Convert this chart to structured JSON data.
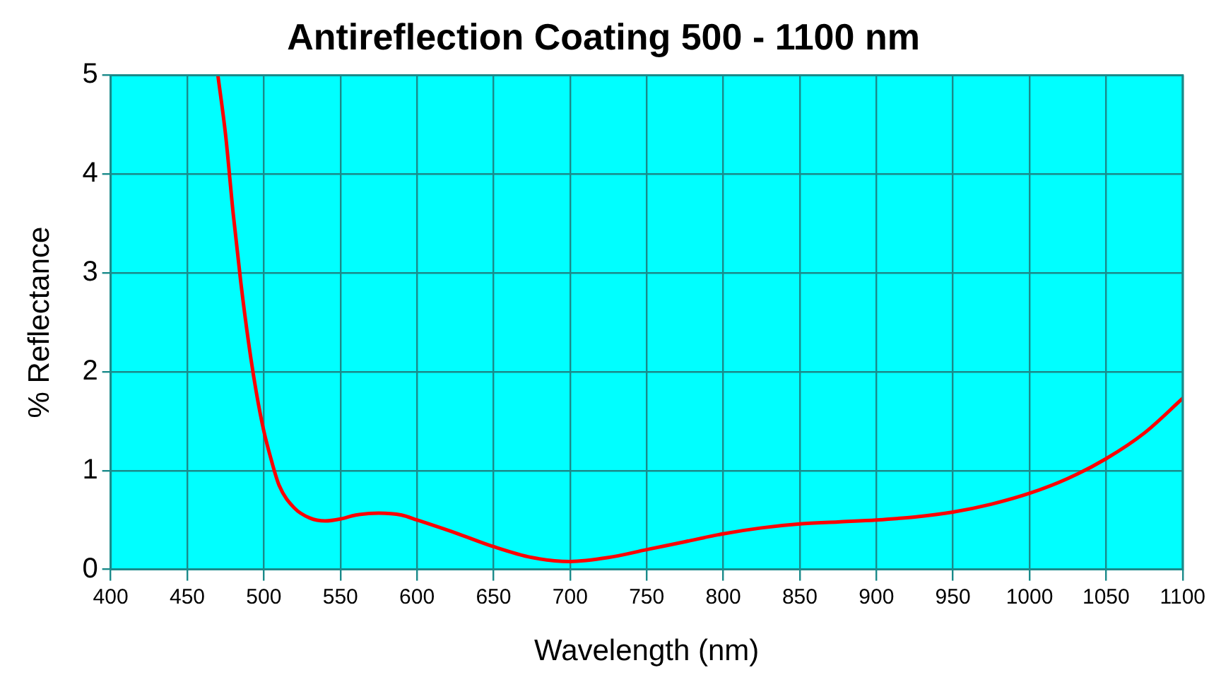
{
  "chart_data": {
    "type": "line",
    "title": "Antireflection Coating 500 - 1100 nm",
    "xlabel": "Wavelength (nm)",
    "ylabel": "% Reflectance",
    "x": [
      470,
      475,
      480,
      485,
      490,
      495,
      500,
      505,
      510,
      520,
      530,
      540,
      550,
      560,
      575,
      590,
      600,
      625,
      650,
      675,
      700,
      725,
      750,
      775,
      800,
      825,
      850,
      875,
      900,
      925,
      950,
      975,
      1000,
      1025,
      1050,
      1075,
      1100
    ],
    "series": [
      {
        "color": "#ff0000",
        "values": [
          5.0,
          4.4,
          3.6,
          2.9,
          2.3,
          1.8,
          1.4,
          1.1,
          0.85,
          0.62,
          0.52,
          0.49,
          0.51,
          0.55,
          0.57,
          0.55,
          0.5,
          0.37,
          0.23,
          0.12,
          0.08,
          0.12,
          0.2,
          0.28,
          0.36,
          0.42,
          0.46,
          0.48,
          0.5,
          0.53,
          0.58,
          0.66,
          0.77,
          0.92,
          1.12,
          1.38,
          1.73
        ]
      }
    ],
    "xlim": [
      400,
      1100
    ],
    "xticks": [
      400,
      450,
      500,
      550,
      600,
      650,
      700,
      750,
      800,
      850,
      900,
      950,
      1000,
      1050,
      1100
    ],
    "ylim": [
      0,
      5
    ],
    "yticks": [
      0,
      1,
      2,
      3,
      4,
      5
    ],
    "grid": true,
    "legend": false,
    "marker": "none",
    "line_style": "solid"
  }
}
